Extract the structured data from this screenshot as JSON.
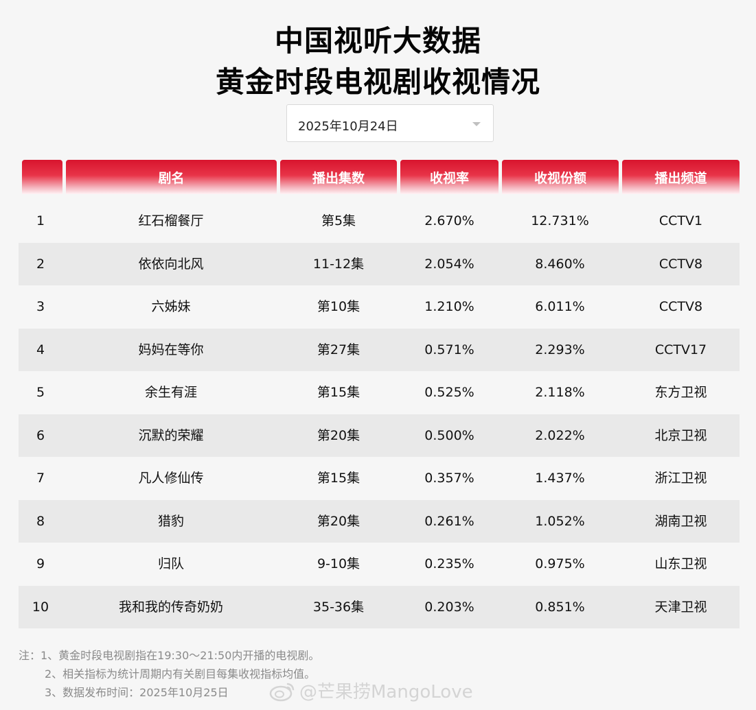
{
  "title_line1": "中国视听大数据",
  "title_line2": "黄金时段电视剧收视情况",
  "date_select": {
    "value": "2025年10月24日"
  },
  "table": {
    "headers": [
      "",
      "剧名",
      "播出集数",
      "收视率",
      "收视份额",
      "播出频道"
    ],
    "rows": [
      {
        "rank": "1",
        "name": "红石榴餐厅",
        "episodes": "第5集",
        "rating": "2.670%",
        "share": "12.731%",
        "channel": "CCTV1"
      },
      {
        "rank": "2",
        "name": "依依向北风",
        "episodes": "11-12集",
        "rating": "2.054%",
        "share": "8.460%",
        "channel": "CCTV8"
      },
      {
        "rank": "3",
        "name": "六姊妹",
        "episodes": "第10集",
        "rating": "1.210%",
        "share": "6.011%",
        "channel": "CCTV8"
      },
      {
        "rank": "4",
        "name": "妈妈在等你",
        "episodes": "第27集",
        "rating": "0.571%",
        "share": "2.293%",
        "channel": "CCTV17"
      },
      {
        "rank": "5",
        "name": "余生有涯",
        "episodes": "第15集",
        "rating": "0.525%",
        "share": "2.118%",
        "channel": "东方卫视"
      },
      {
        "rank": "6",
        "name": "沉默的荣耀",
        "episodes": "第20集",
        "rating": "0.500%",
        "share": "2.022%",
        "channel": "北京卫视"
      },
      {
        "rank": "7",
        "name": "凡人修仙传",
        "episodes": "第15集",
        "rating": "0.357%",
        "share": "1.437%",
        "channel": "浙江卫视"
      },
      {
        "rank": "8",
        "name": "猎豹",
        "episodes": "第20集",
        "rating": "0.261%",
        "share": "1.052%",
        "channel": "湖南卫视"
      },
      {
        "rank": "9",
        "name": "归队",
        "episodes": "9-10集",
        "rating": "0.235%",
        "share": "0.975%",
        "channel": "山东卫视"
      },
      {
        "rank": "10",
        "name": "我和我的传奇奶奶",
        "episodes": "35-36集",
        "rating": "0.203%",
        "share": "0.851%",
        "channel": "天津卫视"
      }
    ]
  },
  "notes": {
    "line1": "注：1、黄金时段电视剧指在19:30～21:50内开播的电视剧。",
    "line2": "2、相关指标为统计周期内有关剧目每集收视指标均值。",
    "line3": "3、数据发布时间：2025年10月25日"
  },
  "watermark": "@芒果捞MangoLove",
  "colors": {
    "header_red": "#d8142e",
    "row_alt": "#e9e9e9",
    "background": "#f6f6f6"
  }
}
